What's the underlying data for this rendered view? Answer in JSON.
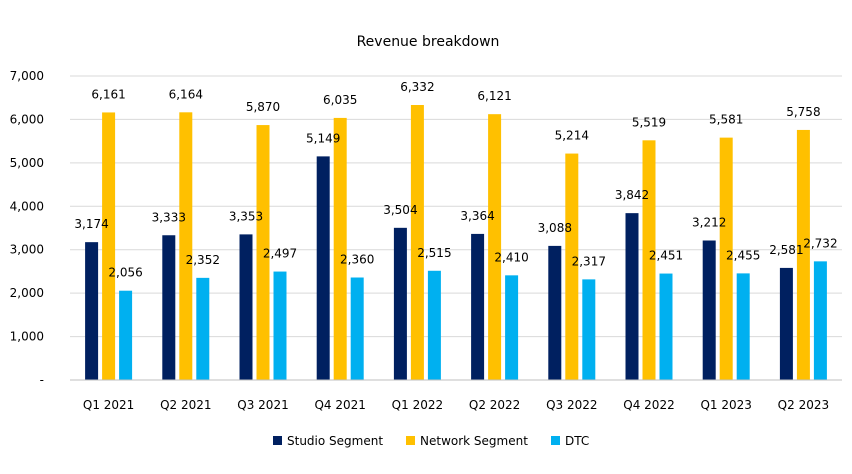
{
  "chart_data": {
    "type": "bar",
    "title": "Revenue breakdown",
    "categories": [
      "Q1 2021",
      "Q2 2021",
      "Q3 2021",
      "Q4 2021",
      "Q1 2022",
      "Q2 2022",
      "Q3 2022",
      "Q4 2022",
      "Q1 2023",
      "Q2 2023"
    ],
    "series": [
      {
        "name": "Studio Segment",
        "color": "#002060",
        "values": [
          3174,
          3333,
          3353,
          5149,
          3504,
          3364,
          3088,
          3842,
          3212,
          2581
        ],
        "labels": [
          "3,174",
          "3,333",
          "3,353",
          "5,149",
          "3,504",
          "3,364",
          "3,088",
          "3,842",
          "3,212",
          "2,581"
        ]
      },
      {
        "name": "Network Segment",
        "color": "#FFC000",
        "values": [
          6161,
          6164,
          5870,
          6035,
          6332,
          6121,
          5214,
          5519,
          5581,
          5758
        ],
        "labels": [
          "6,161",
          "6,164",
          "5,870",
          "6,035",
          "6,332",
          "6,121",
          "5,214",
          "5,519",
          "5,581",
          "5,758"
        ]
      },
      {
        "name": "DTC",
        "color": "#00B0F0",
        "values": [
          2056,
          2352,
          2497,
          2360,
          2515,
          2410,
          2317,
          2451,
          2455,
          2732
        ],
        "labels": [
          "2,056",
          "2,352",
          "2,497",
          "2,360",
          "2,515",
          "2,410",
          "2,317",
          "2,451",
          "2,455",
          "2,732"
        ]
      }
    ],
    "ylim": [
      0,
      7000
    ],
    "yticks": [
      0,
      1000,
      2000,
      3000,
      4000,
      5000,
      6000,
      7000
    ],
    "ytick_labels": [
      "-",
      "1,000",
      "2,000",
      "3,000",
      "4,000",
      "5,000",
      "6,000",
      "7,000"
    ],
    "grid": true,
    "legend_position": "bottom"
  }
}
